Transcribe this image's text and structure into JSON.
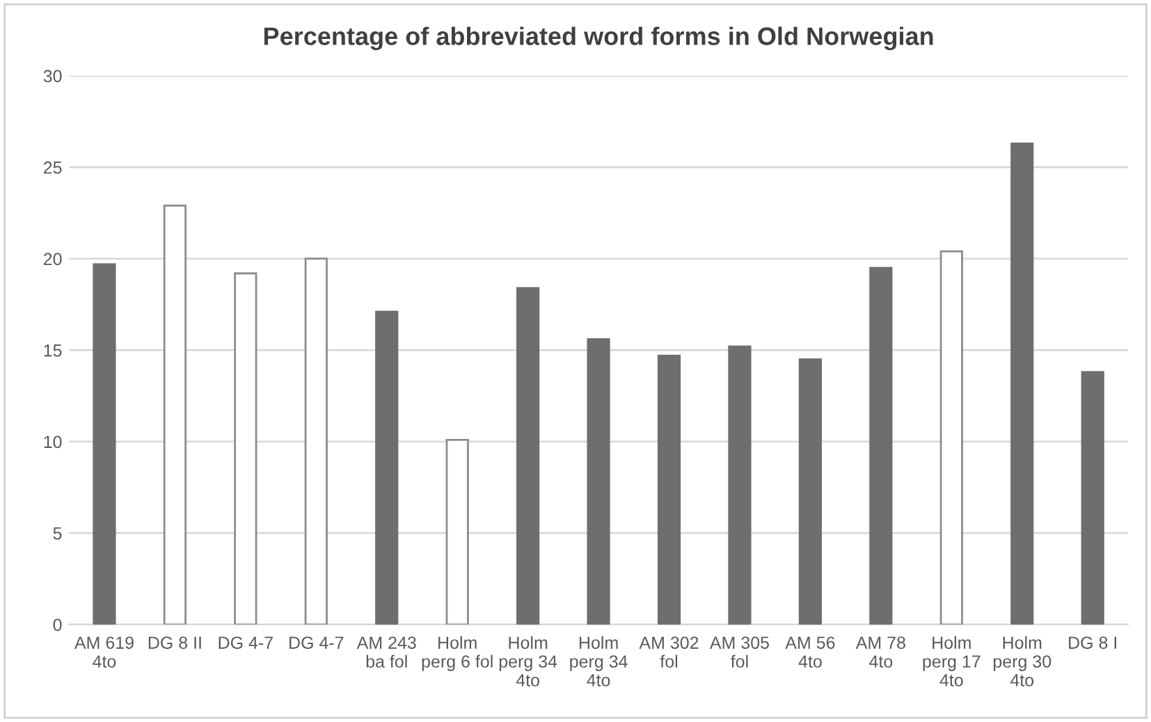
{
  "chart_data": {
    "type": "bar",
    "title": "Percentage of abbreviated word forms in Old Norwegian",
    "categories": [
      "AM 619\n4to",
      "DG 8 II",
      "DG 4-7",
      "DG 4-7",
      "AM 243\nba fol",
      "Holm\nperg 6 fol",
      "Holm\nperg 34\n4to",
      "Holm\nperg 34\n4to",
      "AM 302\nfol",
      "AM 305\nfol",
      "AM 56\n4to",
      "AM 78\n4to",
      "Holm\nperg 17\n4to",
      "Holm\nperg 30\n4to",
      "DG 8 I"
    ],
    "values": [
      19.7,
      22.9,
      19.2,
      20.0,
      17.1,
      10.1,
      18.4,
      15.6,
      14.7,
      15.2,
      14.5,
      19.5,
      20.4,
      26.3,
      13.8
    ],
    "colors": [
      "#6e6e6e",
      "#ffffff",
      "#ffffff",
      "#ffffff",
      "#6e6e6e",
      "#ffffff",
      "#6e6e6e",
      "#6e6e6e",
      "#6e6e6e",
      "#6e6e6e",
      "#6e6e6e",
      "#6e6e6e",
      "#ffffff",
      "#6e6e6e",
      "#6e6e6e"
    ],
    "ylim": [
      0,
      30
    ],
    "yticks": [
      0,
      5,
      10,
      15,
      20,
      25,
      30
    ],
    "grid": "y"
  }
}
